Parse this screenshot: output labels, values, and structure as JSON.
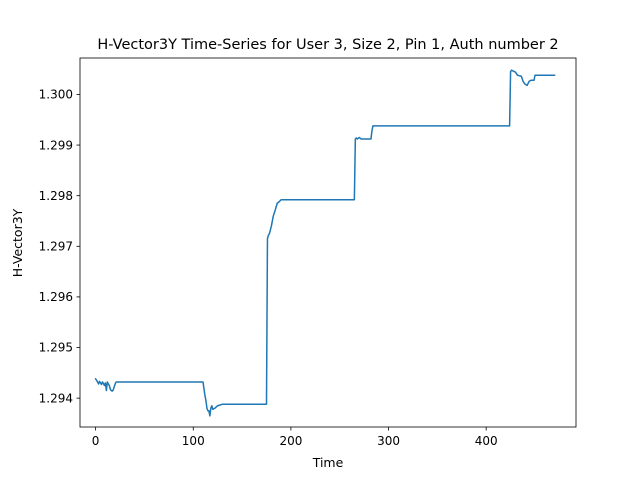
{
  "chart_data": {
    "type": "line",
    "title": "H-Vector3Y Time-Series for User 3, Size 2, Pin 1, Auth number 2",
    "xlabel": "Time",
    "ylabel": "H-Vector3Y",
    "xlim": [
      -16,
      492
    ],
    "ylim": [
      1.29343,
      1.30072
    ],
    "xticks": [
      0,
      100,
      200,
      300,
      400
    ],
    "xtick_labels": [
      "0",
      "100",
      "200",
      "300",
      "400"
    ],
    "yticks": [
      1.294,
      1.295,
      1.296,
      1.297,
      1.298,
      1.299,
      1.3
    ],
    "ytick_labels": [
      "1.294",
      "1.295",
      "1.296",
      "1.297",
      "1.298",
      "1.299",
      "1.300"
    ],
    "grid": false,
    "legend": "none",
    "series": [
      {
        "color": "#1f77b4",
        "x": [
          0,
          2,
          3,
          4,
          5,
          6,
          7,
          8,
          9,
          10,
          11,
          12,
          13,
          14,
          15,
          16,
          17,
          18,
          19,
          20,
          21,
          22,
          23,
          24,
          30,
          60,
          90,
          110,
          111,
          112,
          113,
          114,
          115,
          116,
          117,
          118,
          119,
          120,
          122,
          125,
          130,
          140,
          160,
          175,
          176,
          177,
          178,
          180,
          182,
          184,
          186,
          188,
          190,
          200,
          240,
          265,
          266,
          267,
          268,
          270,
          272,
          275,
          280,
          282,
          283,
          284,
          290,
          320,
          360,
          400,
          424,
          425,
          426,
          428,
          430,
          432,
          436,
          438,
          440,
          442,
          444,
          446,
          448,
          449,
          450,
          455,
          460,
          470
        ],
        "y": [
          1.29438,
          1.29432,
          1.29428,
          1.29433,
          1.2943,
          1.29427,
          1.29432,
          1.29429,
          1.29425,
          1.2943,
          1.29415,
          1.29432,
          1.29428,
          1.29425,
          1.29418,
          1.29415,
          1.29414,
          1.29416,
          1.29422,
          1.29428,
          1.29432,
          1.29432,
          1.29432,
          1.29432,
          1.29432,
          1.29432,
          1.29432,
          1.29432,
          1.29418,
          1.29405,
          1.29395,
          1.2938,
          1.29375,
          1.29375,
          1.29365,
          1.2938,
          1.29385,
          1.29378,
          1.2938,
          1.29385,
          1.29388,
          1.29388,
          1.29388,
          1.29388,
          1.29715,
          1.29722,
          1.29725,
          1.2974,
          1.2976,
          1.29772,
          1.29785,
          1.29788,
          1.29792,
          1.29792,
          1.29792,
          1.29792,
          1.29912,
          1.29914,
          1.29912,
          1.29915,
          1.29912,
          1.29912,
          1.29912,
          1.29912,
          1.29928,
          1.29938,
          1.29938,
          1.29938,
          1.29938,
          1.29938,
          1.29938,
          1.30045,
          1.30048,
          1.30046,
          1.30044,
          1.30038,
          1.30036,
          1.30025,
          1.3002,
          1.30018,
          1.30026,
          1.30028,
          1.30028,
          1.30028,
          1.30038,
          1.30038,
          1.30038,
          1.30038
        ]
      }
    ]
  }
}
